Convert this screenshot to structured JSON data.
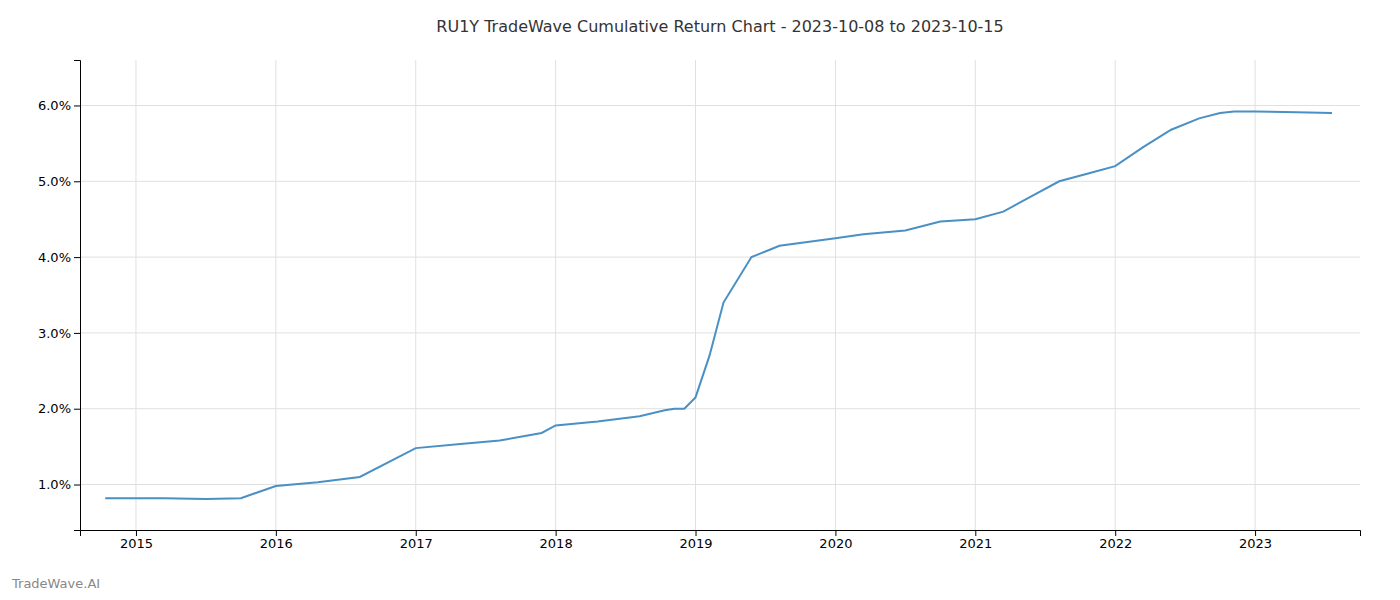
{
  "chart_data": {
    "type": "line",
    "title": "RU1Y TradeWave Cumulative Return Chart - 2023-10-08 to 2023-10-15",
    "annotations": [
      "TradeWave.AI"
    ],
    "color": "#4a90c4",
    "grid": true,
    "x": [
      2014.78,
      2015.0,
      2015.2,
      2015.5,
      2015.75,
      2016.0,
      2016.3,
      2016.6,
      2017.0,
      2017.3,
      2017.6,
      2017.9,
      2018.0,
      2018.3,
      2018.6,
      2018.78,
      2018.85,
      2018.92,
      2019.0,
      2019.1,
      2019.2,
      2019.4,
      2019.6,
      2019.8,
      2020.0,
      2020.2,
      2020.5,
      2020.75,
      2021.0,
      2021.2,
      2021.4,
      2021.6,
      2021.8,
      2022.0,
      2022.2,
      2022.4,
      2022.6,
      2022.75,
      2022.85,
      2023.0,
      2023.3,
      2023.55
    ],
    "values": [
      0.0082,
      0.0082,
      0.0082,
      0.0081,
      0.0082,
      0.0098,
      0.0103,
      0.011,
      0.0148,
      0.0153,
      0.0158,
      0.0168,
      0.0178,
      0.0183,
      0.019,
      0.0198,
      0.02,
      0.02,
      0.0215,
      0.027,
      0.034,
      0.04,
      0.0415,
      0.042,
      0.0425,
      0.043,
      0.0435,
      0.0447,
      0.045,
      0.046,
      0.048,
      0.05,
      0.051,
      0.052,
      0.0545,
      0.0568,
      0.0583,
      0.059,
      0.0592,
      0.0592,
      0.0591,
      0.059
    ],
    "xlim": [
      2014.6,
      2023.75
    ],
    "ylim": [
      0.004,
      0.066
    ],
    "xticks": [
      2015,
      2016,
      2017,
      2018,
      2019,
      2020,
      2021,
      2022,
      2023
    ],
    "yticks": [
      {
        "value": 0.01,
        "label": "1.0%"
      },
      {
        "value": 0.02,
        "label": "2.0%"
      },
      {
        "value": 0.03,
        "label": "3.0%"
      },
      {
        "value": 0.04,
        "label": "4.0%"
      },
      {
        "value": 0.05,
        "label": "5.0%"
      },
      {
        "value": 0.06,
        "label": "6.0%"
      }
    ]
  }
}
